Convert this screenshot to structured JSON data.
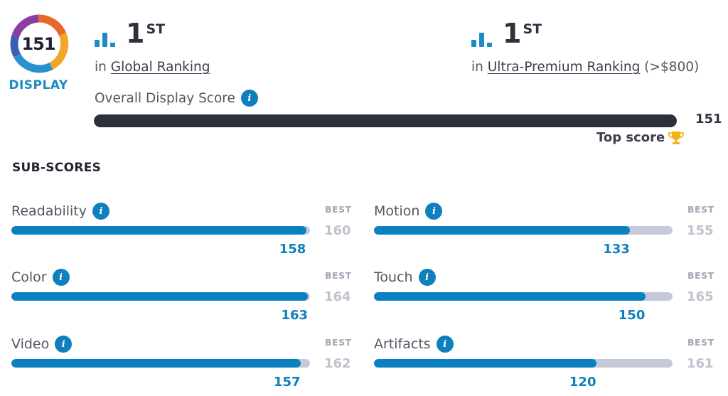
{
  "badge": {
    "score": "151",
    "label": "DISPLAY"
  },
  "rankings": {
    "global": {
      "rank": "1",
      "suffix": "ST",
      "prefix": "in",
      "link": "Global Ranking",
      "extra": ""
    },
    "premium": {
      "rank": "1",
      "suffix": "ST",
      "prefix": "in",
      "link": "Ultra-Premium Ranking",
      "extra": "(>$800)"
    }
  },
  "overall": {
    "label": "Overall Display Score",
    "score": "151",
    "fraction": 1.0,
    "top_label": "Top score"
  },
  "subscores_title": "SUB-SCORES",
  "best_label": "BEST",
  "subscores": [
    {
      "label": "Readability",
      "score": "158",
      "best": "160",
      "fraction": 0.9875
    },
    {
      "label": "Motion",
      "score": "133",
      "best": "155",
      "fraction": 0.858
    },
    {
      "label": "Color",
      "score": "163",
      "best": "164",
      "fraction": 0.994
    },
    {
      "label": "Touch",
      "score": "150",
      "best": "165",
      "fraction": 0.909
    },
    {
      "label": "Video",
      "score": "157",
      "best": "162",
      "fraction": 0.969
    },
    {
      "label": "Artifacts",
      "score": "120",
      "best": "161",
      "fraction": 0.745
    }
  ],
  "colors": {
    "accent": "#0f7fbd",
    "bar_dark": "#2b303b",
    "track": "#c6cad8",
    "trophy": "#f2b316"
  },
  "icons": {
    "info": "info-icon",
    "rank": "bar-chart-icon",
    "trophy": "trophy-icon"
  }
}
